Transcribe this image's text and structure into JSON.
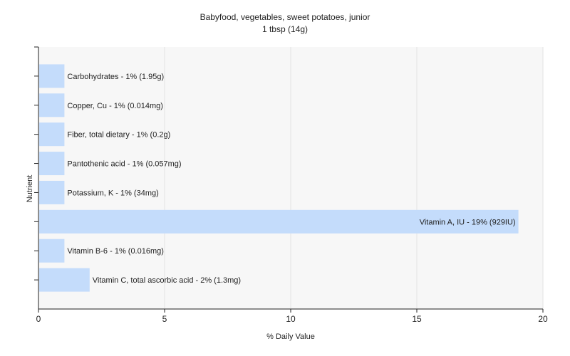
{
  "colors": {
    "bar": "#c4dcfb",
    "plot_background": "#f7f7f7",
    "grid": "#e3e3e3",
    "axis": "#222222"
  },
  "chart_data": {
    "type": "bar",
    "orientation": "horizontal",
    "title": "Babyfood, vegetables, sweet potatoes, junior",
    "subtitle": "1 tbsp (14g)",
    "xlabel": "% Daily Value",
    "ylabel": "Nutrient",
    "xlim": [
      0,
      20
    ],
    "xticks": [
      0,
      5,
      10,
      15,
      20
    ],
    "grid": true,
    "categories": [
      "Carbohydrates",
      "Copper, Cu",
      "Fiber, total dietary",
      "Pantothenic acid",
      "Potassium, K",
      "Vitamin A, IU",
      "Vitamin B-6",
      "Vitamin C, total ascorbic acid"
    ],
    "values": [
      1,
      1,
      1,
      1,
      1,
      19,
      1,
      2
    ],
    "labels": [
      "Carbohydrates - 1% (1.95g)",
      "Copper, Cu - 1% (0.014mg)",
      "Fiber, total dietary - 1% (0.2g)",
      "Pantothenic acid - 1% (0.057mg)",
      "Potassium, K - 1% (34mg)",
      "Vitamin A, IU - 19% (929IU)",
      "Vitamin B-6 - 1% (0.016mg)",
      "Vitamin C, total ascorbic acid - 2% (1.3mg)"
    ]
  }
}
